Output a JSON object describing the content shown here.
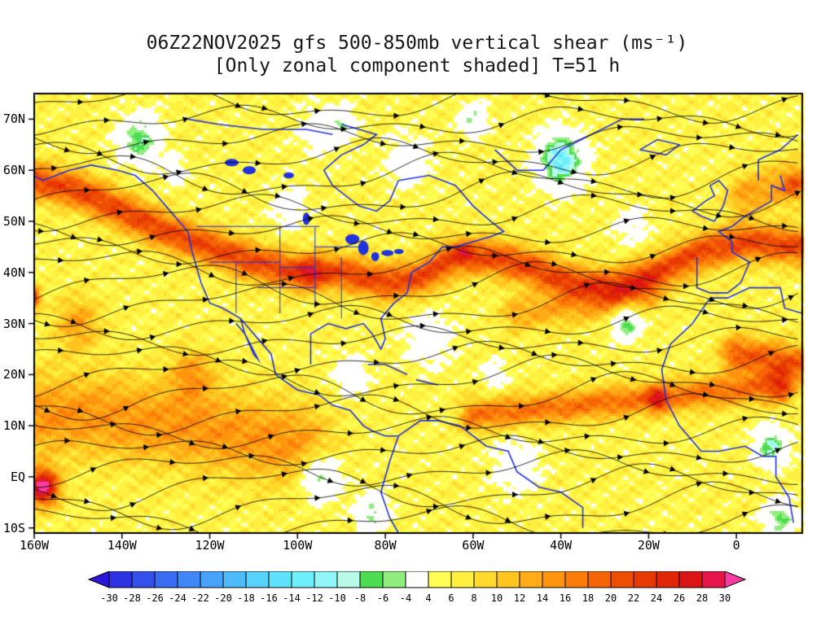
{
  "title": {
    "line1": "06Z22NOV2025 gfs 500-850mb vertical shear (ms⁻¹)",
    "line2": "[Only zonal component shaded] T=51 h"
  },
  "axes": {
    "lat_ticks": [
      {
        "label": "70N",
        "value": 70
      },
      {
        "label": "60N",
        "value": 60
      },
      {
        "label": "50N",
        "value": 50
      },
      {
        "label": "40N",
        "value": 40
      },
      {
        "label": "30N",
        "value": 30
      },
      {
        "label": "20N",
        "value": 20
      },
      {
        "label": "10N",
        "value": 10
      },
      {
        "label": "EQ",
        "value": 0
      },
      {
        "label": "10S",
        "value": -10
      }
    ],
    "lon_ticks": [
      {
        "label": "160W",
        "value": -160
      },
      {
        "label": "140W",
        "value": -140
      },
      {
        "label": "120W",
        "value": -120
      },
      {
        "label": "100W",
        "value": -100
      },
      {
        "label": "80W",
        "value": -80
      },
      {
        "label": "60W",
        "value": -60
      },
      {
        "label": "40W",
        "value": -40
      },
      {
        "label": "20W",
        "value": -20
      },
      {
        "label": "0",
        "value": 0
      }
    ]
  },
  "colorbar": {
    "tick_labels": [
      "-30",
      "-28",
      "-26",
      "-24",
      "-22",
      "-20",
      "-18",
      "-16",
      "-14",
      "-12",
      "-10",
      "-8",
      "-6",
      "-4",
      "4",
      "6",
      "8",
      "10",
      "12",
      "14",
      "16",
      "18",
      "20",
      "22",
      "24",
      "26",
      "28",
      "30"
    ]
  },
  "chart_data": {
    "type": "heatmap",
    "title": "06Z22NOV2025 gfs 500-850mb vertical shear (ms⁻¹)",
    "subtitle": "[Only zonal component shaded] T=51 h",
    "model": "gfs",
    "init_time": "06Z22NOV2025",
    "forecast_hour": 51,
    "variable": "500-850mb vertical shear",
    "shaded_component": "zonal",
    "units": "ms⁻¹",
    "lon_range": [
      -160,
      15
    ],
    "lat_range": [
      -11,
      75
    ],
    "levels": [
      -30,
      -28,
      -26,
      -24,
      -22,
      -20,
      -18,
      -16,
      -14,
      -12,
      -10,
      -8,
      -6,
      -4,
      4,
      6,
      8,
      10,
      12,
      14,
      16,
      18,
      20,
      22,
      24,
      26,
      28,
      30
    ],
    "colors": [
      "#2a18d8",
      "#2d33e3",
      "#3350ec",
      "#3a6cf2",
      "#4088f6",
      "#47a3f8",
      "#4ebcfa",
      "#56d2fc",
      "#5fe3fd",
      "#6feffe",
      "#92f6f8",
      "#b7fae8",
      "#4edc52",
      "#90ee7c",
      "#ffffff",
      "#fffd54",
      "#ffef3e",
      "#ffda2c",
      "#ffc41f",
      "#ffac16",
      "#ff940e",
      "#fb7c09",
      "#f56506",
      "#ee4e04",
      "#e73a03",
      "#e12507",
      "#dd1414",
      "#e5154a",
      "#f83ca0"
    ],
    "field": {
      "base": 6,
      "bands": [
        {
          "path": [
            [
              -160,
              58
            ],
            [
              -150,
              56
            ],
            [
              -140,
              52
            ],
            [
              -130,
              48
            ],
            [
              -120,
              45
            ],
            [
              -110,
              42
            ],
            [
              -100,
              40
            ],
            [
              -90,
              40
            ],
            [
              -80,
              38
            ],
            [
              -72,
              39
            ],
            [
              -64,
              43
            ],
            [
              -56,
              43
            ],
            [
              -47,
              41
            ],
            [
              -38,
              38
            ],
            [
              -28,
              37
            ],
            [
              -18,
              40
            ],
            [
              -8,
              44
            ],
            [
              2,
              46
            ],
            [
              15,
              45
            ]
          ],
          "amp": 16,
          "width": 3.4
        },
        {
          "path": [
            [
              -162,
              12
            ],
            [
              -145,
              12
            ],
            [
              -128,
              10
            ],
            [
              -112,
              8
            ],
            [
              -100,
              6
            ]
          ],
          "amp": 9,
          "width": 8
        },
        {
          "path": [
            [
              -60,
              12
            ],
            [
              -48,
              13
            ],
            [
              -36,
              14
            ],
            [
              -24,
              15
            ],
            [
              -12,
              16
            ],
            [
              0,
              17
            ],
            [
              10,
              18
            ]
          ],
          "amp": 12,
          "width": 3
        },
        {
          "path": [
            [
              0,
              24
            ],
            [
              8,
              23
            ],
            [
              15,
              22
            ]
          ],
          "amp": 14,
          "width": 3.5
        },
        {
          "path": [
            [
              2,
              55
            ],
            [
              10,
              57
            ],
            [
              15,
              58
            ]
          ],
          "amp": 8,
          "width": 4
        },
        {
          "path": [
            [
              -50,
              32
            ],
            [
              -40,
              33
            ],
            [
              -30,
              34
            ],
            [
              -20,
              36
            ]
          ],
          "amp": 7,
          "width": 3.5
        }
      ],
      "blobs": [
        [
          -97,
          40,
          7,
          3
        ],
        [
          -62,
          44,
          7,
          2
        ],
        [
          -161,
          35,
          28,
          2
        ],
        [
          -158,
          -2,
          26,
          3.5
        ],
        [
          -124,
          20,
          8,
          5
        ],
        [
          -150,
          30,
          8,
          5
        ],
        [
          -18,
          15,
          12,
          2.2
        ],
        [
          13,
          57,
          7,
          2.5
        ],
        [
          10,
          17,
          6,
          3
        ],
        [
          -136,
          66,
          -14,
          4.5
        ],
        [
          -40,
          62,
          -20,
          5
        ],
        [
          -25,
          30,
          -14,
          3.2
        ],
        [
          -95,
          0,
          -13,
          4.5
        ],
        [
          -83,
          -7,
          -11,
          3.5
        ],
        [
          8,
          6,
          -15,
          3.5
        ],
        [
          10,
          -8,
          -13,
          3.5
        ],
        [
          -60,
          70,
          -10,
          3
        ],
        [
          -90,
          69,
          -9,
          3
        ],
        [
          -70,
          27,
          -7,
          5
        ],
        [
          -50,
          2,
          -7,
          5
        ],
        [
          -88,
          20,
          -6,
          4
        ],
        [
          -102,
          53,
          -6,
          4
        ],
        [
          -128,
          60,
          -5,
          3
        ],
        [
          -75,
          62,
          -6,
          5
        ],
        [
          -95,
          68,
          -5,
          5
        ],
        [
          -24,
          49,
          -5,
          4
        ],
        [
          -55,
          20,
          -5,
          3
        ]
      ]
    },
    "coastlines": [
      [
        [
          -166,
          69
        ],
        [
          -162,
          66
        ],
        [
          -165,
          61
        ],
        [
          -158,
          58
        ],
        [
          -152,
          60
        ],
        [
          -147,
          61
        ],
        [
          -141,
          60
        ],
        [
          -137,
          59
        ]
      ],
      [
        [
          -137,
          59
        ],
        [
          -133,
          56
        ],
        [
          -130,
          53
        ],
        [
          -127,
          50
        ],
        [
          -125,
          48
        ],
        [
          -124,
          44
        ],
        [
          -122,
          38
        ],
        [
          -120,
          34
        ],
        [
          -117,
          33
        ],
        [
          -113,
          31
        ],
        [
          -109,
          27
        ],
        [
          -106,
          24
        ],
        [
          -105,
          20
        ],
        [
          -100,
          17
        ],
        [
          -95,
          16
        ],
        [
          -92,
          14
        ],
        [
          -88,
          13
        ],
        [
          -85,
          10
        ],
        [
          -83,
          9
        ],
        [
          -80,
          8
        ],
        [
          -77,
          8
        ]
      ],
      [
        [
          -113,
          31
        ],
        [
          -112,
          28
        ],
        [
          -109,
          23
        ],
        [
          -110,
          24
        ],
        [
          -112,
          28
        ],
        [
          -114,
          30
        ]
      ],
      [
        [
          -97,
          22
        ],
        [
          -97,
          28
        ],
        [
          -93,
          30
        ],
        [
          -89,
          29
        ],
        [
          -85,
          30
        ],
        [
          -83,
          28
        ],
        [
          -81,
          25
        ],
        [
          -80,
          27
        ],
        [
          -81,
          31
        ],
        [
          -78,
          34
        ],
        [
          -75,
          36
        ],
        [
          -74,
          40
        ],
        [
          -70,
          42
        ],
        [
          -67,
          45
        ],
        [
          -64,
          45
        ],
        [
          -60,
          46
        ],
        [
          -56,
          47
        ],
        [
          -53,
          48
        ],
        [
          -56,
          50
        ],
        [
          -60,
          53
        ],
        [
          -64,
          57
        ],
        [
          -70,
          59
        ],
        [
          -77,
          58
        ]
      ],
      [
        [
          -77,
          58
        ],
        [
          -79,
          54
        ],
        [
          -82,
          52
        ],
        [
          -86,
          53
        ],
        [
          -92,
          57
        ],
        [
          -94,
          60
        ],
        [
          -90,
          63
        ],
        [
          -85,
          65
        ],
        [
          -82,
          67
        ],
        [
          -86,
          68
        ],
        [
          -90,
          69
        ]
      ],
      [
        [
          -125,
          70
        ],
        [
          -118,
          69
        ],
        [
          -108,
          68
        ],
        [
          -98,
          68
        ],
        [
          -92,
          67
        ]
      ],
      [
        [
          -55,
          64
        ],
        [
          -50,
          60
        ],
        [
          -44,
          60
        ],
        [
          -40,
          64
        ],
        [
          -33,
          67
        ],
        [
          -26,
          70
        ],
        [
          -21,
          70
        ]
      ],
      [
        [
          -22,
          64
        ],
        [
          -16,
          63
        ],
        [
          -13,
          65
        ],
        [
          -18,
          66
        ],
        [
          -22,
          64
        ]
      ],
      [
        [
          -77,
          8
        ],
        [
          -72,
          11
        ],
        [
          -68,
          11
        ],
        [
          -63,
          10
        ],
        [
          -57,
          6
        ],
        [
          -52,
          5
        ],
        [
          -50,
          1
        ],
        [
          -45,
          -2
        ],
        [
          -40,
          -3
        ],
        [
          -35,
          -6
        ],
        [
          -35,
          -10
        ]
      ],
      [
        [
          -77,
          8
        ],
        [
          -79,
          3
        ],
        [
          -81,
          -3
        ],
        [
          -79,
          -8
        ],
        [
          -77,
          -11
        ]
      ],
      [
        [
          -84,
          22
        ],
        [
          -80,
          22
        ],
        [
          -75,
          20
        ]
      ],
      [
        [
          -73,
          19
        ],
        [
          -68,
          18
        ]
      ],
      [
        [
          -5,
          50
        ],
        [
          -3,
          53
        ],
        [
          -2,
          56
        ],
        [
          -4,
          58
        ],
        [
          -6,
          57
        ],
        [
          -5,
          55
        ],
        [
          -7,
          54
        ],
        [
          -10,
          52
        ],
        [
          -8,
          51
        ],
        [
          -5,
          50
        ]
      ],
      [
        [
          -9,
          43
        ],
        [
          -9,
          37
        ],
        [
          -6,
          36
        ],
        [
          -2,
          36
        ],
        [
          1,
          38
        ],
        [
          3,
          42
        ],
        [
          -1,
          44
        ],
        [
          -1,
          46
        ],
        [
          -4,
          48
        ],
        [
          -1,
          49
        ],
        [
          2,
          51
        ],
        [
          4,
          52
        ],
        [
          8,
          54
        ],
        [
          8,
          57
        ],
        [
          11,
          56
        ],
        [
          10,
          59
        ]
      ],
      [
        [
          -6,
          35
        ],
        [
          -2,
          35
        ],
        [
          3,
          37
        ],
        [
          10,
          37
        ],
        [
          11,
          33
        ],
        [
          15,
          32
        ]
      ],
      [
        [
          -6,
          35
        ],
        [
          -10,
          30
        ],
        [
          -15,
          26
        ],
        [
          -17,
          21
        ],
        [
          -16,
          15
        ],
        [
          -13,
          10
        ],
        [
          -8,
          5
        ],
        [
          -4,
          5
        ],
        [
          2,
          6
        ],
        [
          6,
          4
        ],
        [
          9,
          4
        ],
        [
          9,
          0
        ],
        [
          12,
          -4
        ],
        [
          13,
          -9
        ]
      ],
      [
        [
          5,
          58
        ],
        [
          5,
          62
        ],
        [
          10,
          64
        ],
        [
          14,
          67
        ]
      ]
    ],
    "state_borders": [
      [
        [
          -123,
          49
        ],
        [
          -95,
          49
        ]
      ],
      [
        [
          -114,
          32
        ],
        [
          -114,
          42
        ]
      ],
      [
        [
          -104,
          32
        ],
        [
          -104,
          49
        ]
      ],
      [
        [
          -96,
          33
        ],
        [
          -96,
          49
        ]
      ],
      [
        [
          -90,
          31
        ],
        [
          -90,
          43
        ]
      ],
      [
        [
          -120,
          42
        ],
        [
          -104,
          42
        ]
      ],
      [
        [
          -109,
          37
        ],
        [
          -96,
          37
        ]
      ],
      [
        [
          -104,
          41
        ],
        [
          -96,
          41
        ]
      ],
      [
        [
          -96,
          45
        ],
        [
          -85,
          45
        ]
      ]
    ],
    "lakes": [
      [
        -87.5,
        46.5,
        1.6,
        1.0
      ],
      [
        -85,
        44.8,
        1.2,
        1.4
      ],
      [
        -82.3,
        43.1,
        0.9,
        0.9
      ],
      [
        -79.5,
        43.8,
        1.4,
        0.6
      ],
      [
        -76.9,
        44.1,
        1.1,
        0.5
      ],
      [
        -111,
        60,
        1.5,
        0.8
      ],
      [
        -115,
        61.5,
        1.6,
        0.7
      ],
      [
        -102,
        59,
        1.2,
        0.6
      ],
      [
        -98,
        50.5,
        0.8,
        1.2
      ]
    ],
    "coast_color": "#2233dd",
    "streamline_color": "#000000",
    "overlays": [
      "streamlines",
      "coastlines",
      "state-borders",
      "lakes"
    ]
  }
}
